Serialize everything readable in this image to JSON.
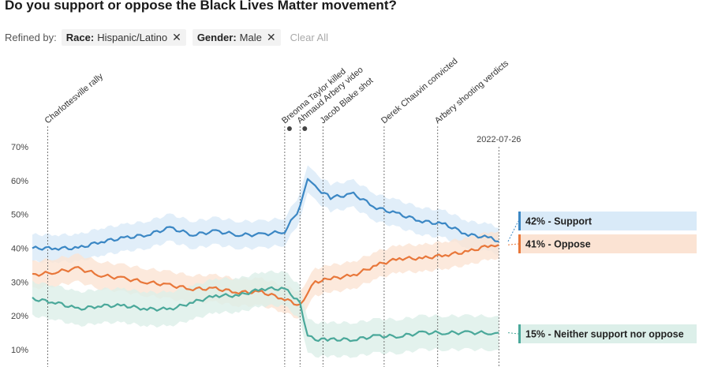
{
  "header": {
    "title": "Do you support or oppose the Black Lives Matter movement?"
  },
  "filters": {
    "refined_label": "Refined by:",
    "chips": [
      {
        "key": "Race:",
        "value": "Hispanic/Latino"
      },
      {
        "key": "Gender:",
        "value": "Male"
      }
    ],
    "close_icon": "close-icon",
    "clear_label": "Clear All"
  },
  "colors": {
    "support": "#3b87c4",
    "oppose": "#e8773a",
    "neither": "#4aa89a",
    "support_band": "#d9eaf8",
    "oppose_band": "#fbe3d3",
    "neither_band": "#dcefe9"
  },
  "chart_data": {
    "type": "line",
    "title": "Do you support or oppose the Black Lives Matter movement?",
    "xlabel": "",
    "ylabel": "",
    "x_range": [
      "2017-06",
      "2022-08"
    ],
    "ylim": [
      8,
      72
    ],
    "yticks": [
      10,
      20,
      30,
      40,
      50,
      60,
      70
    ],
    "ytick_labels": [
      "10%",
      "20%",
      "30%",
      "40%",
      "50%",
      "60%",
      "70%"
    ],
    "grid": false,
    "date_marker": "2022-07-26",
    "events": [
      {
        "label": "Charlottesville rally",
        "date": "2017-08"
      },
      {
        "label": "Breonna Taylor killed",
        "date": "2020-03"
      },
      {
        "label": "Ahmaud Arbery video",
        "date": "2020-05"
      },
      {
        "label": "Jacob Blake shot",
        "date": "2020-08"
      },
      {
        "label": "Derek Chauvin convicted",
        "date": "2021-04"
      },
      {
        "label": "Arbery shooting verdicts",
        "date": "2021-11"
      }
    ],
    "x": [
      "2017-06",
      "2017-09",
      "2017-12",
      "2018-03",
      "2018-06",
      "2018-09",
      "2018-12",
      "2019-03",
      "2019-06",
      "2019-09",
      "2019-12",
      "2020-03",
      "2020-05",
      "2020-06",
      "2020-07",
      "2020-09",
      "2020-12",
      "2021-03",
      "2021-06",
      "2021-09",
      "2021-12",
      "2022-03",
      "2022-06",
      "2022-07"
    ],
    "series": [
      {
        "name": "Support",
        "values": [
          40,
          40,
          40,
          42,
          43,
          44,
          46,
          44,
          45,
          44,
          44,
          45,
          52,
          61,
          58,
          55,
          56,
          52,
          50,
          48,
          47,
          44,
          43,
          42
        ]
      },
      {
        "name": "Oppose",
        "values": [
          32,
          33,
          34,
          32,
          31,
          30,
          29,
          28,
          28,
          27,
          27,
          25,
          23,
          27,
          30,
          31,
          32,
          35,
          37,
          37,
          38,
          39,
          41,
          41
        ]
      },
      {
        "name": "Neither support nor oppose",
        "values": [
          25,
          24,
          22,
          23,
          23,
          22,
          22,
          24,
          26,
          26,
          28,
          28,
          24,
          14,
          13,
          13,
          13,
          14,
          14,
          15,
          15,
          15,
          15,
          15
        ]
      }
    ],
    "end_labels": [
      {
        "series": "Support",
        "text": "42% - Support"
      },
      {
        "series": "Oppose",
        "text": "41% - Oppose"
      },
      {
        "series": "Neither support nor oppose",
        "text": "15% - Neither support nor oppose"
      }
    ]
  }
}
